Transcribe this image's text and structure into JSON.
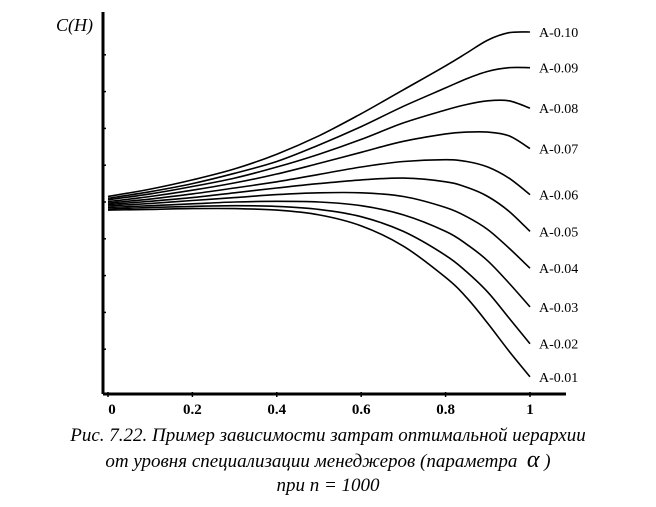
{
  "chart_data": {
    "type": "line",
    "ylabel": "C(H)",
    "xlabel": "",
    "xticks": [
      "0",
      "0.2",
      "0.4",
      "0.6",
      "0.8",
      "1"
    ],
    "xlim": [
      0,
      1
    ],
    "ylim": [
      0,
      10
    ],
    "grid": false,
    "legend": "curve labels at right end of each line",
    "x": [
      0,
      0.1,
      0.2,
      0.3,
      0.4,
      0.5,
      0.6,
      0.7,
      0.8,
      0.85,
      0.9,
      0.95,
      1.0
    ],
    "series": [
      {
        "name": "A-0.10",
        "values": [
          5.15,
          5.35,
          5.6,
          5.9,
          6.3,
          6.8,
          7.4,
          8.05,
          8.7,
          9.05,
          9.4,
          9.6,
          9.62
        ]
      },
      {
        "name": "A-0.09",
        "values": [
          5.1,
          5.28,
          5.5,
          5.78,
          6.1,
          6.55,
          7.05,
          7.6,
          8.1,
          8.35,
          8.55,
          8.65,
          8.65
        ]
      },
      {
        "name": "A-0.08",
        "values": [
          5.06,
          5.22,
          5.42,
          5.65,
          5.95,
          6.3,
          6.7,
          7.15,
          7.5,
          7.65,
          7.75,
          7.75,
          7.55
        ]
      },
      {
        "name": "A-0.07",
        "values": [
          5.01,
          5.15,
          5.32,
          5.52,
          5.76,
          6.05,
          6.35,
          6.65,
          6.85,
          6.9,
          6.9,
          6.8,
          6.45
        ]
      },
      {
        "name": "A-0.06",
        "values": [
          4.97,
          5.08,
          5.22,
          5.38,
          5.55,
          5.75,
          5.95,
          6.1,
          6.15,
          6.1,
          5.95,
          5.65,
          5.2
        ]
      },
      {
        "name": "A-0.05",
        "values": [
          4.93,
          5.02,
          5.12,
          5.25,
          5.38,
          5.5,
          5.6,
          5.65,
          5.55,
          5.4,
          5.15,
          4.75,
          4.2
        ]
      },
      {
        "name": "A-0.04",
        "values": [
          4.89,
          4.96,
          5.04,
          5.12,
          5.2,
          5.25,
          5.25,
          5.15,
          4.85,
          4.6,
          4.25,
          3.75,
          3.2
        ]
      },
      {
        "name": "A-0.03",
        "values": [
          4.85,
          4.9,
          4.95,
          5.0,
          5.02,
          5.0,
          4.9,
          4.65,
          4.2,
          3.85,
          3.4,
          2.8,
          2.15
        ]
      },
      {
        "name": "A-0.02",
        "values": [
          4.81,
          4.85,
          4.88,
          4.9,
          4.88,
          4.8,
          4.6,
          4.2,
          3.55,
          3.1,
          2.55,
          1.85,
          1.15
        ]
      },
      {
        "name": "A-0.01",
        "values": [
          4.78,
          4.8,
          4.82,
          4.82,
          4.78,
          4.65,
          4.35,
          3.8,
          2.95,
          2.4,
          1.7,
          0.95,
          0.25
        ]
      }
    ]
  },
  "caption": {
    "line1": "Рис. 7.22. Пример зависимости затрат оптимальной иерархии",
    "line2_before": "от уровня специализации менеджеров (параметра",
    "line2_symbol": "α",
    "line2_after": ")",
    "line3": "при n = 1000"
  }
}
